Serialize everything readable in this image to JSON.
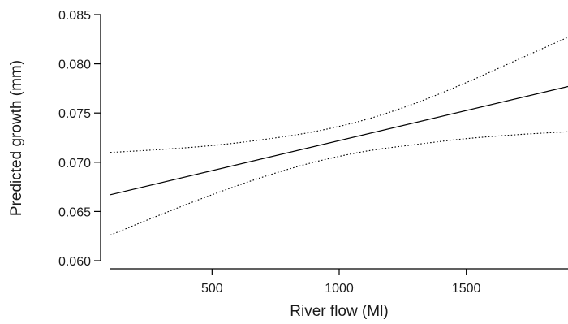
{
  "chart_data": {
    "type": "line",
    "xlabel": "River flow (Ml)",
    "ylabel": "Predicted growth (mm)",
    "xlim": [
      100,
      1900
    ],
    "ylim": [
      0.06,
      0.085
    ],
    "x_ticks": [
      500,
      1000,
      1500
    ],
    "x_tick_labels": [
      "500",
      "1000",
      "1500"
    ],
    "y_ticks": [
      0.06,
      0.065,
      0.07,
      0.075,
      0.08,
      0.085
    ],
    "y_tick_labels": [
      "0.060",
      "0.065",
      "0.070",
      "0.075",
      "0.080",
      "0.085"
    ],
    "grid": false,
    "series": [
      {
        "style": "solid",
        "x": [
          100,
          1900
        ],
        "y": [
          0.0667,
          0.0777
        ]
      },
      {
        "style": "dotted",
        "x": [
          100,
          300,
          500,
          700,
          900,
          1100,
          1300,
          1500,
          1700,
          1900
        ],
        "y": [
          0.071,
          0.0713,
          0.0717,
          0.0723,
          0.0731,
          0.0743,
          0.076,
          0.0781,
          0.0804,
          0.0827
        ]
      },
      {
        "style": "dotted",
        "x": [
          100,
          300,
          500,
          700,
          900,
          1100,
          1300,
          1500,
          1700,
          1900
        ],
        "y": [
          0.0626,
          0.0647,
          0.0667,
          0.0685,
          0.07,
          0.0711,
          0.0718,
          0.0724,
          0.0728,
          0.0731
        ]
      }
    ]
  }
}
